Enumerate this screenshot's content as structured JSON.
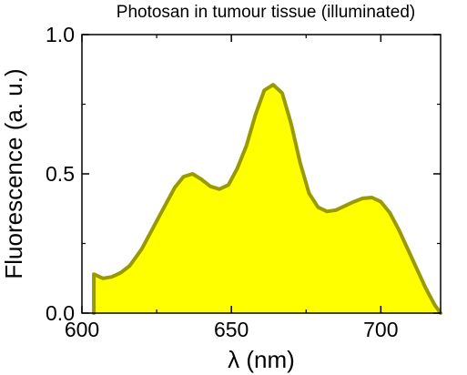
{
  "chart_data": {
    "type": "area",
    "title": "Photosan in tumour tissue (illuminated)",
    "xlabel": "λ (nm)",
    "ylabel": "Fluorescence (a. u.)",
    "xlim": [
      600,
      720
    ],
    "ylim": [
      0.0,
      1.0
    ],
    "xticks": [
      600,
      650,
      700
    ],
    "xtick_labels": [
      "600",
      "650",
      "700"
    ],
    "yticks": [
      0.0,
      0.5,
      1.0
    ],
    "ytick_labels": [
      "0.0",
      "0.5",
      "1.0"
    ],
    "grid": false,
    "legend": "none",
    "fill_color": "#ffff00",
    "line_color": "#999900",
    "series": [
      {
        "x": [
          604,
          604,
          607,
          610,
          613,
          616,
          620,
          624,
          628,
          631,
          634,
          637,
          640,
          643,
          646,
          649,
          652,
          655,
          658,
          661,
          664,
          667,
          670,
          673,
          676,
          679,
          682,
          685,
          688,
          691,
          694,
          697,
          700,
          703,
          706,
          709,
          712,
          715,
          718,
          720
        ],
        "y": [
          0.0,
          0.14,
          0.125,
          0.13,
          0.145,
          0.17,
          0.23,
          0.31,
          0.39,
          0.45,
          0.49,
          0.5,
          0.48,
          0.455,
          0.445,
          0.46,
          0.52,
          0.6,
          0.71,
          0.8,
          0.82,
          0.79,
          0.68,
          0.54,
          0.43,
          0.38,
          0.365,
          0.37,
          0.385,
          0.4,
          0.412,
          0.415,
          0.4,
          0.36,
          0.3,
          0.23,
          0.16,
          0.09,
          0.03,
          0.0
        ]
      }
    ]
  }
}
